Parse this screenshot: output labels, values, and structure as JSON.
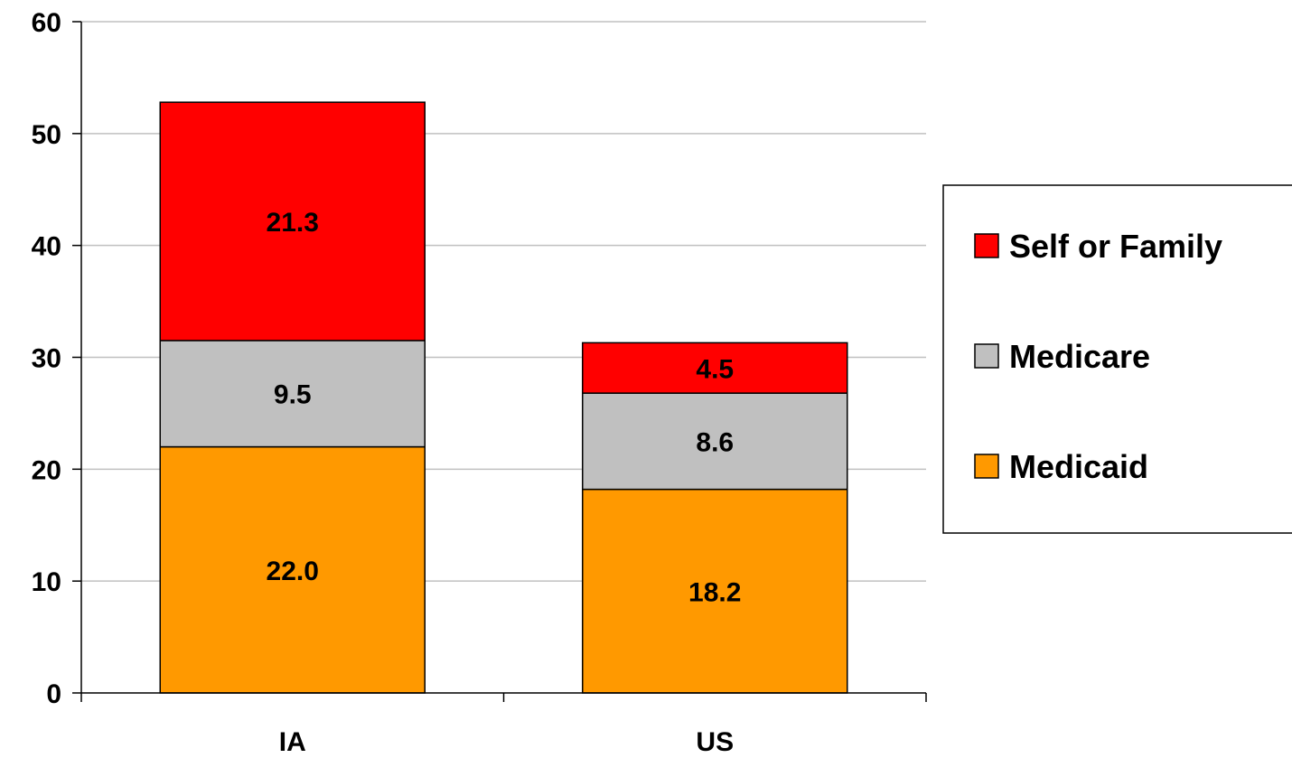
{
  "chart_data": {
    "type": "bar",
    "stacked": true,
    "title": "",
    "xlabel": "",
    "ylabel": "",
    "categories": [
      "IA",
      "US"
    ],
    "series": [
      {
        "name": "Medicaid",
        "values": [
          22.0,
          18.2
        ],
        "labels": [
          "22.0",
          "18.2"
        ],
        "color": "#FF9900"
      },
      {
        "name": "Medicare",
        "values": [
          9.5,
          8.6
        ],
        "labels": [
          "9.5",
          "8.6"
        ],
        "color": "#C0C0C0"
      },
      {
        "name": "Self or Family",
        "values": [
          21.3,
          4.5
        ],
        "labels": [
          "21.3",
          "4.5"
        ],
        "color": "#FF0000"
      }
    ],
    "ylim": [
      0,
      60
    ],
    "yticks": [
      0,
      10,
      20,
      30,
      40,
      50,
      60
    ],
    "ytick_labels": [
      "0",
      "10",
      "20",
      "30",
      "40",
      "50",
      "60"
    ],
    "grid": true,
    "legend": {
      "placement": "right",
      "order": [
        "Self or Family",
        "Medicare",
        "Medicaid"
      ]
    }
  }
}
